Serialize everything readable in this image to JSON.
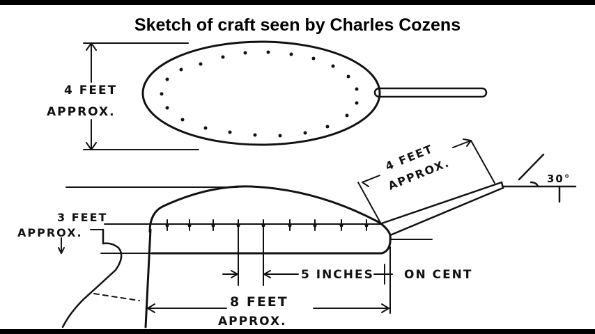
{
  "title": "Sketch of craft seen by Charles Cozens",
  "labels": {
    "top_height_line1": "4 FEET",
    "top_height_line2": "APPROX.",
    "side_height_line1": "3 FEET",
    "side_height_line2": "APPROX.",
    "tail_length_line1": "4 FEET",
    "tail_length_line2": "APPROX.",
    "angle": "30°",
    "spacing_part1": "5 INCHES",
    "spacing_part2": "ON CENT",
    "length_line1": "8 FEET",
    "length_line2": "APPROX."
  },
  "colors": {
    "background": "#000000",
    "paper": "#ffffff",
    "ink": "#111111"
  }
}
